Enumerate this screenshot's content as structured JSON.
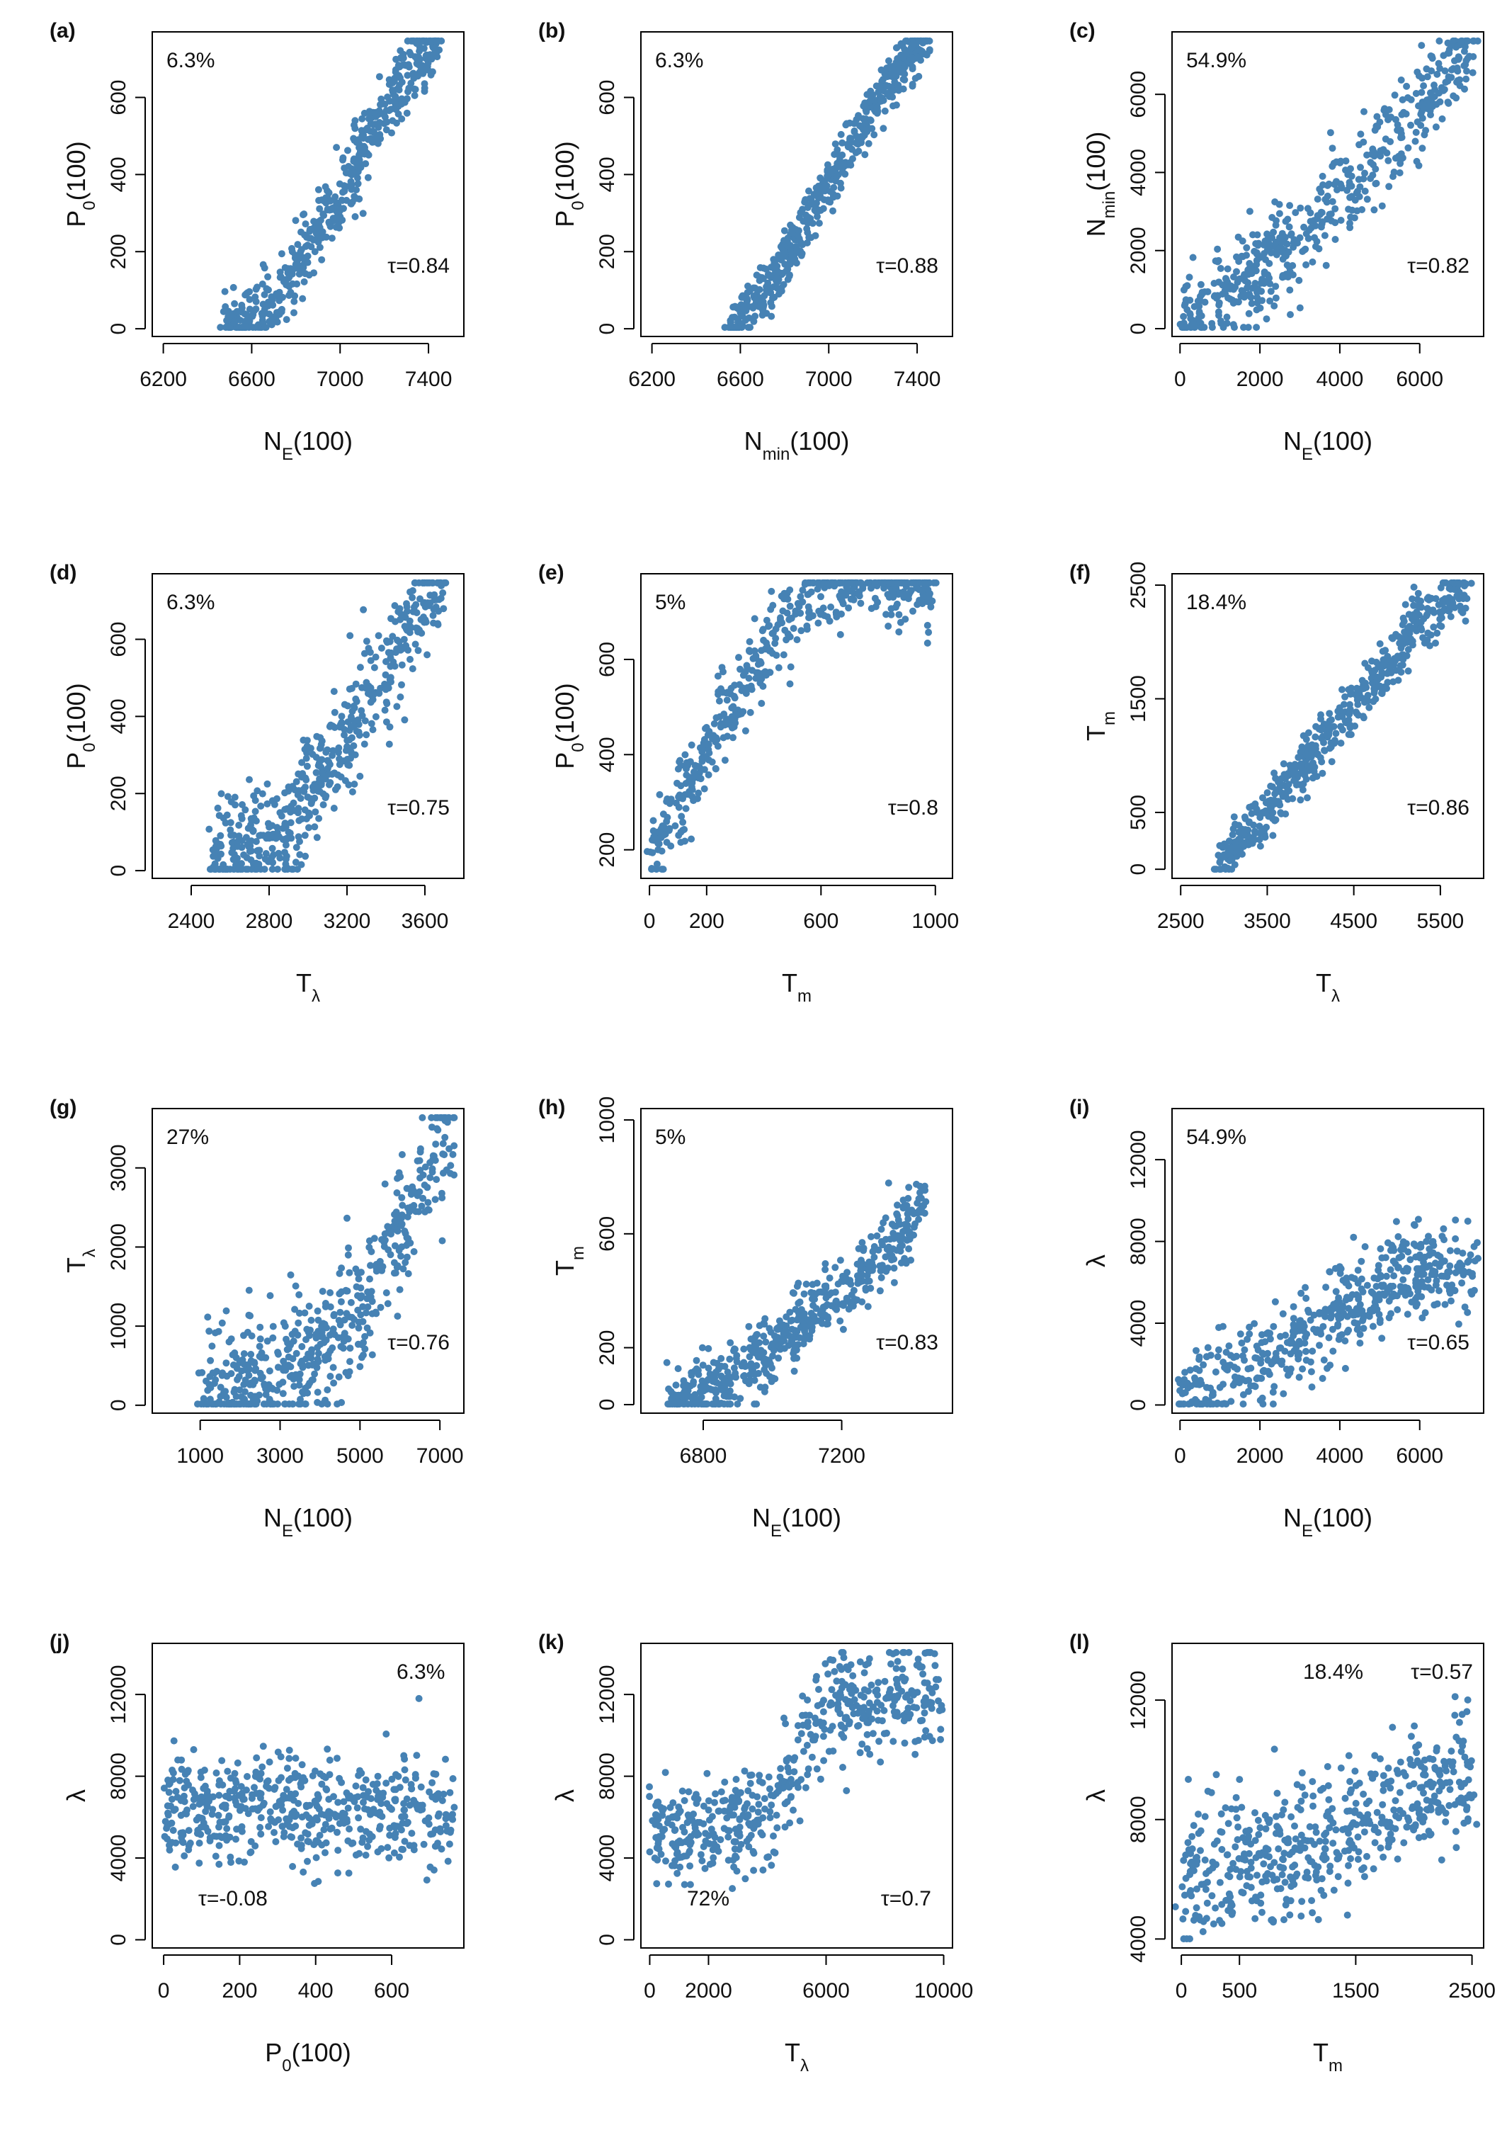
{
  "figure": {
    "title": ""
  },
  "colors": {
    "points": "#4682b4",
    "axes": "#000000"
  },
  "chart_data": [
    {
      "panel": "(a)",
      "type": "scatter",
      "xlabel": "N_E(100)",
      "ylabel": "P_0(100)",
      "x_ticks": [
        "6200",
        "6600",
        "7000",
        "7400"
      ],
      "y_ticks": [
        "0",
        "200",
        "400",
        "600"
      ],
      "xlim": [
        6150,
        7560
      ],
      "ylim": [
        -20,
        770
      ],
      "pct_text": "6.3%",
      "tau_text": "τ=0.84",
      "series": [
        {
          "name": "points",
          "trend": [
            [
              6480,
              0
            ],
            [
              6700,
              60
            ],
            [
              7000,
              350
            ],
            [
              7250,
              620
            ],
            [
              7450,
              760
            ]
          ],
          "spread": 45
        }
      ]
    },
    {
      "panel": "(b)",
      "type": "scatter",
      "xlabel": "N_min(100)",
      "ylabel": "P_0(100)",
      "x_ticks": [
        "6200",
        "6600",
        "7000",
        "7400"
      ],
      "y_ticks": [
        "0",
        "200",
        "400",
        "600"
      ],
      "xlim": [
        6150,
        7560
      ],
      "ylim": [
        -20,
        770
      ],
      "pct_text": "6.3%",
      "tau_text": "τ=0.88",
      "series": [
        {
          "name": "points",
          "trend": [
            [
              6550,
              0
            ],
            [
              6750,
              120
            ],
            [
              7000,
              380
            ],
            [
              7250,
              620
            ],
            [
              7450,
              760
            ]
          ],
          "spread": 35
        }
      ]
    },
    {
      "panel": "(c)",
      "type": "scatter",
      "xlabel": "N_E(100)",
      "ylabel": "N_min(100)",
      "x_ticks": [
        "0",
        "2000",
        "4000",
        "6000"
      ],
      "y_ticks": [
        "0",
        "2000",
        "4000",
        "6000"
      ],
      "xlim": [
        -200,
        7600
      ],
      "ylim": [
        -200,
        7600
      ],
      "pct_text": "54.9%",
      "tau_text": "τ=0.82",
      "series": [
        {
          "name": "points",
          "trend": [
            [
              0,
              100
            ],
            [
              2000,
              1500
            ],
            [
              4000,
              3500
            ],
            [
              5500,
              5000
            ],
            [
              7400,
              7400
            ]
          ],
          "spread": 600
        }
      ]
    },
    {
      "panel": "(d)",
      "type": "scatter",
      "xlabel": "T_λ",
      "ylabel": "P_0(100)",
      "x_ticks": [
        "2400",
        "2800",
        "3200",
        "3600"
      ],
      "y_ticks": [
        "0",
        "200",
        "400",
        "600"
      ],
      "xlim": [
        2200,
        3800
      ],
      "ylim": [
        -20,
        770
      ],
      "pct_text": "6.3%",
      "tau_text": "τ=0.75",
      "series": [
        {
          "name": "points",
          "trend": [
            [
              2500,
              30
            ],
            [
              2900,
              100
            ],
            [
              3200,
              350
            ],
            [
              3500,
              620
            ],
            [
              3700,
              760
            ]
          ],
          "spread": 70
        }
      ]
    },
    {
      "panel": "(e)",
      "type": "scatter",
      "xlabel": "T_m",
      "ylabel": "P_0(100)",
      "x_ticks": [
        "0",
        "200",
        "600",
        "1000"
      ],
      "y_ticks": [
        "200",
        "400",
        "600"
      ],
      "xlim": [
        -30,
        1060
      ],
      "ylim": [
        140,
        780
      ],
      "pct_text": "5%",
      "tau_text": "τ=0.8",
      "series": [
        {
          "name": "points",
          "trend": [
            [
              0,
              170
            ],
            [
              100,
              300
            ],
            [
              250,
              470
            ],
            [
              450,
              650
            ],
            [
              600,
              760
            ],
            [
              1000,
              760
            ]
          ],
          "spread": 45
        }
      ]
    },
    {
      "panel": "(f)",
      "type": "scatter",
      "xlabel": "T_λ",
      "ylabel": "T_m",
      "x_ticks": [
        "2500",
        "3500",
        "4500",
        "5500"
      ],
      "y_ticks": [
        "0",
        "500",
        "1500",
        "2500"
      ],
      "xlim": [
        2400,
        6000
      ],
      "ylim": [
        -80,
        2600
      ],
      "pct_text": "18.4%",
      "tau_text": "τ=0.86",
      "series": [
        {
          "name": "points",
          "trend": [
            [
              2900,
              0
            ],
            [
              3500,
              500
            ],
            [
              4500,
              1450
            ],
            [
              5300,
              2200
            ],
            [
              5800,
              2500
            ]
          ],
          "spread": 120
        }
      ]
    },
    {
      "panel": "(g)",
      "type": "scatter",
      "xlabel": "N_E(100)",
      "ylabel": "T_λ",
      "x_ticks": [
        "1000",
        "3000",
        "5000",
        "7000"
      ],
      "y_ticks": [
        "0",
        "1000",
        "2000",
        "3000"
      ],
      "xlim": [
        -200,
        7600
      ],
      "ylim": [
        -100,
        3750
      ],
      "pct_text": "27%",
      "tau_text": "τ=0.76",
      "series": [
        {
          "name": "points",
          "trend": [
            [
              1000,
              100
            ],
            [
              3500,
              500
            ],
            [
              5000,
              1200
            ],
            [
              6200,
              2400
            ],
            [
              7400,
              3600
            ]
          ],
          "spread": 420
        }
      ]
    },
    {
      "panel": "(h)",
      "type": "scatter",
      "xlabel": "N_E(100)",
      "ylabel": "T_m",
      "x_ticks": [
        "6800",
        "7200"
      ],
      "y_ticks": [
        "0",
        "200",
        "600",
        "1000"
      ],
      "xlim": [
        6620,
        7520
      ],
      "ylim": [
        -30,
        1040
      ],
      "pct_text": "5%",
      "tau_text": "τ=0.83",
      "series": [
        {
          "name": "points",
          "trend": [
            [
              6700,
              0
            ],
            [
              6900,
              100
            ],
            [
              7100,
              300
            ],
            [
              7300,
              500
            ],
            [
              7450,
              750
            ]
          ],
          "spread": 60
        }
      ]
    },
    {
      "panel": "(i)",
      "type": "scatter",
      "xlabel": "N_E(100)",
      "ylabel": "λ",
      "x_ticks": [
        "0",
        "2000",
        "4000",
        "6000"
      ],
      "y_ticks": [
        "0",
        "4000",
        "8000",
        "12000"
      ],
      "xlim": [
        -200,
        7600
      ],
      "ylim": [
        -400,
        14500
      ],
      "pct_text": "54.9%",
      "tau_text": "τ=0.65",
      "series": [
        {
          "name": "points",
          "trend": [
            [
              0,
              500
            ],
            [
              2000,
              2000
            ],
            [
              4000,
              4500
            ],
            [
              5500,
              6500
            ],
            [
              7400,
              6500
            ]
          ],
          "spread": 1100
        }
      ]
    },
    {
      "panel": "(j)",
      "type": "scatter",
      "xlabel": "P_0(100)",
      "ylabel": "λ",
      "x_ticks": [
        "0",
        "200",
        "400",
        "600"
      ],
      "y_ticks": [
        "0",
        "4000",
        "8000",
        "12000"
      ],
      "xlim": [
        -30,
        790
      ],
      "ylim": [
        -400,
        14500
      ],
      "pct_text": "6.3%",
      "tau_text": "τ=-0.08",
      "series": [
        {
          "name": "points",
          "trend": [
            [
              0,
              6500
            ],
            [
              760,
              6200
            ]
          ],
          "spread": 1300
        }
      ]
    },
    {
      "panel": "(k)",
      "type": "scatter",
      "xlabel": "T_λ",
      "ylabel": "λ",
      "x_ticks": [
        "0",
        "2000",
        "6000",
        "10000"
      ],
      "y_ticks": [
        "0",
        "4000",
        "8000",
        "12000"
      ],
      "xlim": [
        -300,
        10300
      ],
      "ylim": [
        -400,
        14500
      ],
      "pct_text": "72%",
      "tau_text": "τ=0.7",
      "series": [
        {
          "name": "points",
          "trend": [
            [
              0,
              5000
            ],
            [
              4000,
              5800
            ],
            [
              5000,
              8500
            ],
            [
              6000,
              11500
            ],
            [
              9900,
              12000
            ]
          ],
          "spread": 1300
        }
      ]
    },
    {
      "panel": "(l)",
      "type": "scatter",
      "xlabel": "T_m",
      "ylabel": "λ",
      "x_ticks": [
        "0",
        "500",
        "1500",
        "2500"
      ],
      "y_ticks": [
        "4000",
        "8000",
        "12000"
      ],
      "xlim": [
        -80,
        2600
      ],
      "ylim": [
        3700,
        13900
      ],
      "pct_text": "18.4%",
      "tau_text": "τ=0.57",
      "series": [
        {
          "name": "points",
          "trend": [
            [
              0,
              6000
            ],
            [
              1000,
              7000
            ],
            [
              1800,
              8300
            ],
            [
              2500,
              9500
            ]
          ],
          "spread": 1100
        }
      ]
    }
  ]
}
